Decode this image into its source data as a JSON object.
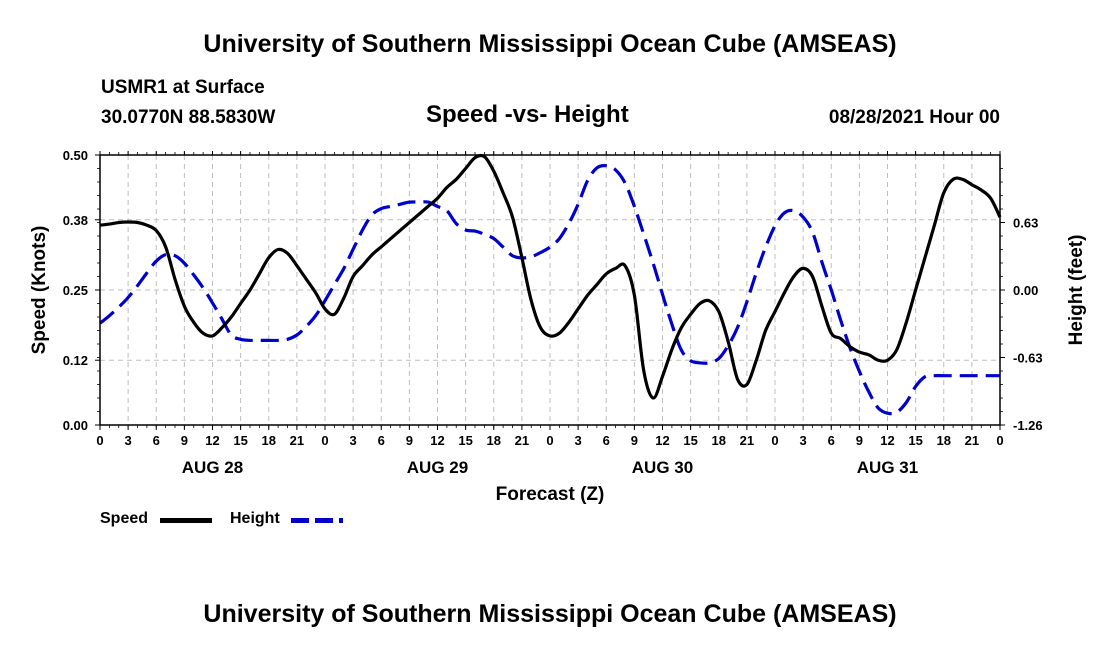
{
  "header": {
    "title": "University of Southern Mississippi Ocean Cube (AMSEAS)",
    "station": "USMR1 at Surface",
    "coords": "30.0770N  88.5830W",
    "subtitle": "Speed -vs- Height",
    "datetime": "08/28/2021 Hour 00"
  },
  "footer": {
    "title": "University of Southern Mississippi Ocean Cube (AMSEAS)"
  },
  "legend": {
    "speed_label": "Speed",
    "height_label": "Height",
    "speed_color": "#000000",
    "height_color": "#0000cc"
  },
  "chart_data": {
    "type": "line",
    "title": "Speed -vs- Height",
    "xlabel": "Forecast (Z)",
    "ylabel": "Speed (Knots)",
    "y2label": "Height (feet)",
    "xlim": [
      0,
      96
    ],
    "ylim": [
      0,
      0.5
    ],
    "y2lim": [
      -1.26,
      1.26
    ],
    "grid": true,
    "legend_position": "bottom-left",
    "x_ticks": [
      0,
      3,
      6,
      9,
      12,
      15,
      18,
      21,
      24,
      27,
      30,
      33,
      36,
      39,
      42,
      45,
      48,
      51,
      54,
      57,
      60,
      63,
      66,
      69,
      72,
      75,
      78,
      81,
      84,
      87,
      90,
      93,
      96
    ],
    "x_tick_labels": [
      "0",
      "3",
      "6",
      "9",
      "12",
      "15",
      "18",
      "21",
      "0",
      "3",
      "6",
      "9",
      "12",
      "15",
      "18",
      "21",
      "0",
      "3",
      "6",
      "9",
      "12",
      "15",
      "18",
      "21",
      "0",
      "3",
      "6",
      "9",
      "12",
      "15",
      "18",
      "21",
      "0"
    ],
    "day_labels": [
      {
        "x": 12,
        "label": "AUG 28"
      },
      {
        "x": 36,
        "label": "AUG 29"
      },
      {
        "x": 60,
        "label": "AUG 30"
      },
      {
        "x": 84,
        "label": "AUG 31"
      }
    ],
    "y_ticks": [
      0.0,
      0.12,
      0.25,
      0.38,
      0.5
    ],
    "y_tick_labels": [
      "0.00",
      "0.12",
      "0.25",
      "0.38",
      "0.50"
    ],
    "y2_ticks": [
      -1.26,
      -0.63,
      0.0,
      0.63
    ],
    "y2_tick_labels": [
      "-1.26",
      "-0.63",
      "0.00",
      "0.63"
    ],
    "series": [
      {
        "name": "Speed",
        "axis": "left",
        "color": "#000000",
        "style": "solid",
        "x": [
          0,
          1,
          2,
          3,
          4,
          5,
          6,
          7,
          8,
          9,
          10,
          11,
          12,
          13,
          14,
          15,
          16,
          17,
          18,
          19,
          20,
          21,
          22,
          23,
          24,
          25,
          26,
          27,
          28,
          29,
          30,
          31,
          32,
          33,
          34,
          35,
          36,
          37,
          38,
          39,
          40,
          41,
          42,
          43,
          44,
          45,
          46,
          47,
          48,
          49,
          50,
          51,
          52,
          53,
          54,
          55,
          56,
          57,
          58,
          59,
          60,
          61,
          62,
          63,
          64,
          65,
          66,
          67,
          68,
          69,
          70,
          71,
          72,
          73,
          74,
          75,
          76,
          77,
          78,
          79,
          80,
          81,
          82,
          83,
          84,
          85,
          86,
          87,
          88,
          89,
          90,
          91,
          92,
          93,
          94,
          95,
          96
        ],
        "values": [
          0.37,
          0.372,
          0.375,
          0.376,
          0.375,
          0.37,
          0.36,
          0.33,
          0.27,
          0.22,
          0.19,
          0.17,
          0.165,
          0.18,
          0.2,
          0.225,
          0.25,
          0.28,
          0.31,
          0.325,
          0.318,
          0.295,
          0.27,
          0.245,
          0.215,
          0.205,
          0.235,
          0.275,
          0.295,
          0.315,
          0.33,
          0.345,
          0.36,
          0.375,
          0.39,
          0.405,
          0.42,
          0.44,
          0.455,
          0.475,
          0.495,
          0.497,
          0.47,
          0.43,
          0.385,
          0.31,
          0.23,
          0.18,
          0.165,
          0.17,
          0.19,
          0.215,
          0.24,
          0.26,
          0.28,
          0.29,
          0.295,
          0.24,
          0.1,
          0.05,
          0.09,
          0.14,
          0.18,
          0.205,
          0.225,
          0.23,
          0.21,
          0.155,
          0.085,
          0.075,
          0.12,
          0.175,
          0.21,
          0.245,
          0.275,
          0.29,
          0.275,
          0.22,
          0.17,
          0.16,
          0.145,
          0.135,
          0.13,
          0.12,
          0.12,
          0.14,
          0.19,
          0.25,
          0.31,
          0.37,
          0.43,
          0.455,
          0.455,
          0.445,
          0.435,
          0.42,
          0.385
        ]
      },
      {
        "name": "Height",
        "axis": "right",
        "color": "#0000cc",
        "style": "dashed",
        "x": [
          0,
          1,
          2,
          3,
          4,
          5,
          6,
          7,
          8,
          9,
          10,
          11,
          12,
          13,
          14,
          15,
          16,
          17,
          18,
          19,
          20,
          21,
          22,
          23,
          24,
          25,
          26,
          27,
          28,
          29,
          30,
          31,
          32,
          33,
          34,
          35,
          36,
          37,
          38,
          39,
          40,
          41,
          42,
          43,
          44,
          45,
          46,
          47,
          48,
          49,
          50,
          51,
          52,
          53,
          54,
          55,
          56,
          57,
          58,
          59,
          60,
          61,
          62,
          63,
          64,
          65,
          66,
          67,
          68,
          69,
          70,
          71,
          72,
          73,
          74,
          75,
          76,
          77,
          78,
          79,
          80,
          81,
          82,
          83,
          84,
          85,
          86,
          87,
          88,
          89,
          90,
          91,
          92,
          93,
          94,
          95,
          96
        ],
        "values": [
          -0.31,
          -0.24,
          -0.16,
          -0.07,
          0.04,
          0.16,
          0.27,
          0.33,
          0.32,
          0.25,
          0.14,
          0.02,
          -0.12,
          -0.27,
          -0.42,
          -0.46,
          -0.47,
          -0.47,
          -0.47,
          -0.47,
          -0.46,
          -0.42,
          -0.34,
          -0.24,
          -0.1,
          0.05,
          0.2,
          0.38,
          0.56,
          0.7,
          0.76,
          0.78,
          0.8,
          0.82,
          0.82,
          0.82,
          0.78,
          0.74,
          0.62,
          0.56,
          0.55,
          0.52,
          0.48,
          0.4,
          0.32,
          0.3,
          0.31,
          0.35,
          0.4,
          0.48,
          0.62,
          0.8,
          1.02,
          1.14,
          1.16,
          1.12,
          1.0,
          0.78,
          0.52,
          0.25,
          -0.04,
          -0.32,
          -0.56,
          -0.66,
          -0.68,
          -0.68,
          -0.64,
          -0.52,
          -0.35,
          -0.11,
          0.16,
          0.4,
          0.6,
          0.72,
          0.74,
          0.68,
          0.54,
          0.26,
          0.0,
          -0.28,
          -0.54,
          -0.76,
          -0.95,
          -1.1,
          -1.15,
          -1.14,
          -1.05,
          -0.9,
          -0.81,
          -0.8,
          -0.8,
          -0.8,
          -0.8,
          -0.8,
          -0.8,
          -0.8,
          -0.8
        ]
      }
    ]
  }
}
